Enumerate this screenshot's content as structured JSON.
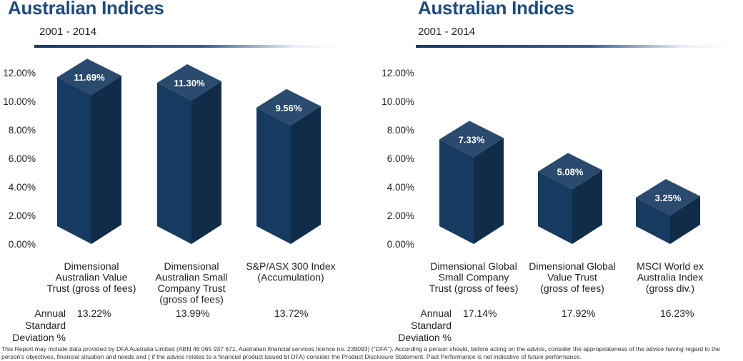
{
  "footer": "This Report may include data provided by DFA Australia Limited (ABN 46 065 937 671, Australian financial services licence no. 239093) (\"DFA\"). According a person should, before acting on the advice, consider the appropriateness of the advice having regard to the person's objectives, financial situation and needs and ( if the advice relates to a financial product issued bt DFA) consider the Product Disclosure Statement. Past Performance is not indicative of future performance.",
  "chart_data": [
    {
      "type": "bar",
      "title": "Australian Indices",
      "subtitle": "2001 - 2014",
      "ylim": [
        0,
        12
      ],
      "yticks": [
        "0.00%",
        "2.00%",
        "4.00%",
        "6.00%",
        "8.00%",
        "10.00%",
        "12.00%"
      ],
      "categories": [
        [
          "Dimensional",
          "Australian Value",
          "Trust (gross of fees)"
        ],
        [
          "Dimensional",
          "Australian Small",
          "Company Trust",
          "(gross of fees)"
        ],
        [
          "S&P/ASX 300 Index",
          "(Accumulation)"
        ]
      ],
      "values": [
        11.69,
        11.3,
        9.56
      ],
      "value_labels": [
        "11.69%",
        "11.30%",
        "9.56%"
      ],
      "bar_color": "#173a61",
      "std_dev_label": [
        "Annual",
        "Standard",
        "Deviation %"
      ],
      "std_dev_values": [
        "13.22%",
        "13.99%",
        "13.72%"
      ]
    },
    {
      "type": "bar",
      "title": "Australian Indices",
      "subtitle": "2001 - 2014",
      "ylim": [
        0,
        12
      ],
      "yticks": [
        "0.00%",
        "2.00%",
        "4.00%",
        "6.00%",
        "8.00%",
        "10.00%",
        "12.00%"
      ],
      "categories": [
        [
          "Dimensional Global",
          "Small Company",
          "Trust (gross of fees)"
        ],
        [
          "Dimensional Global",
          "Value Trust",
          "(gross of fees)"
        ],
        [
          "MSCI World ex",
          "Australia Index",
          "(gross div.)"
        ]
      ],
      "values": [
        7.33,
        5.08,
        3.25
      ],
      "value_labels": [
        "7.33%",
        "5.08%",
        "3.25%"
      ],
      "bar_color": "#173a61",
      "std_dev_label": [
        "Annual",
        "Standard",
        "Deviation %"
      ],
      "std_dev_values": [
        "17.14%",
        "17.92%",
        "16.23%"
      ]
    }
  ]
}
